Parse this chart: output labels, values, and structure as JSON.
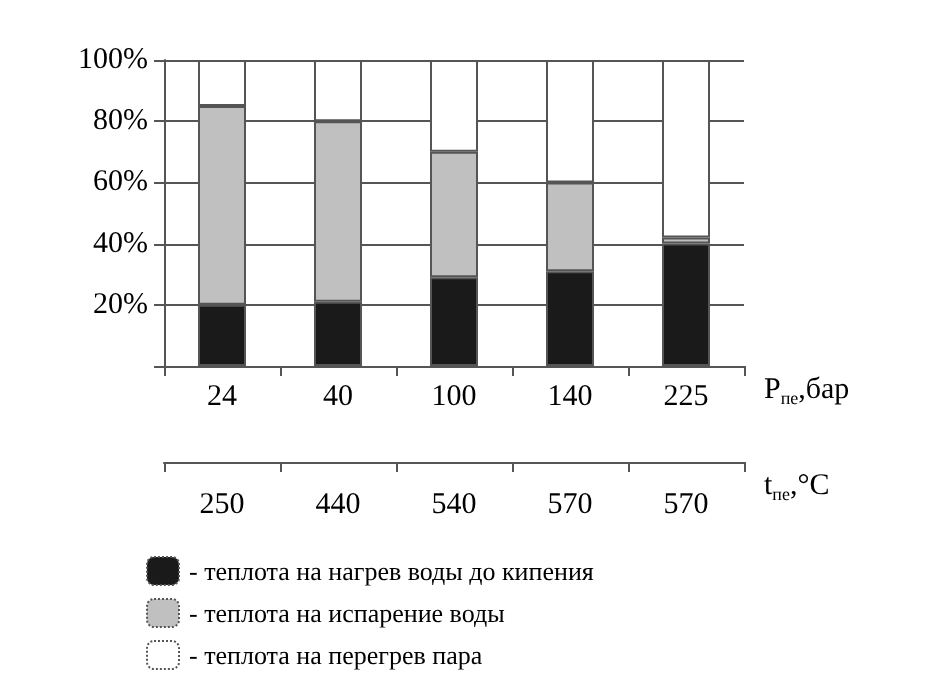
{
  "chart_data": {
    "type": "bar",
    "stacked": true,
    "categories": [
      "24",
      "40",
      "100",
      "140",
      "225"
    ],
    "xlabel": "P$_{пе}$,бар",
    "x2label": "t$_{пе}$,°С",
    "annotations": [
      "250",
      "440",
      "540",
      "570",
      "570"
    ],
    "series": [
      {
        "name": "- теплота на нагрев воды до кипения",
        "color": "#1a1a1a",
        "values": [
          20,
          21,
          29,
          31,
          40
        ]
      },
      {
        "name": "- теплота на испарение воды",
        "color": "#c0c0c0",
        "values": [
          65,
          59,
          41,
          29,
          2
        ]
      },
      {
        "name": "- теплота на перегрев пара",
        "color": "#ffffff",
        "values": [
          15,
          20,
          30,
          40,
          58
        ]
      }
    ],
    "ylim": [
      0,
      100
    ],
    "yticks": [
      {
        "value": 0,
        "label": null
      },
      {
        "value": 20,
        "label": "20%"
      },
      {
        "value": 40,
        "label": "40%"
      },
      {
        "value": 60,
        "label": "60%"
      },
      {
        "value": 80,
        "label": "80%"
      },
      {
        "value": 100,
        "label": "100%"
      }
    ],
    "grid": "y",
    "legend": "bottom"
  }
}
